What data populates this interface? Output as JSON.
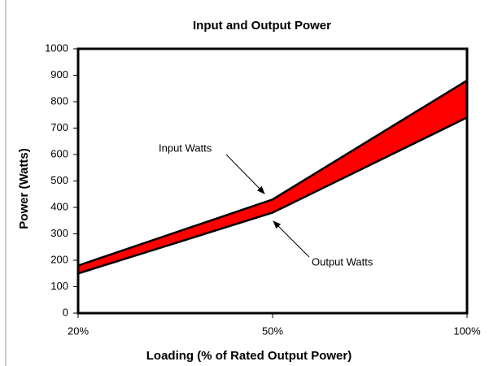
{
  "chart_data": {
    "type": "line",
    "title": "Input and Output Power",
    "x_label": "Loading (% of Rated Output Power)",
    "y_label": "Power (Watts)",
    "categories": [
      "20%",
      "50%",
      "100%"
    ],
    "series": [
      {
        "name": "Input Watts",
        "color": "#000000",
        "values": [
          180,
          430,
          880
        ]
      },
      {
        "name": "Output Watts",
        "color": "#000000",
        "values": [
          150,
          380,
          740
        ]
      }
    ],
    "fill_between_color": "#ff0000",
    "ylim": [
      0,
      1000
    ],
    "yticks": [
      0,
      100,
      200,
      300,
      400,
      500,
      600,
      700,
      800,
      900,
      1000
    ],
    "annotations": [
      "Input Watts",
      "Output Watts"
    ]
  }
}
